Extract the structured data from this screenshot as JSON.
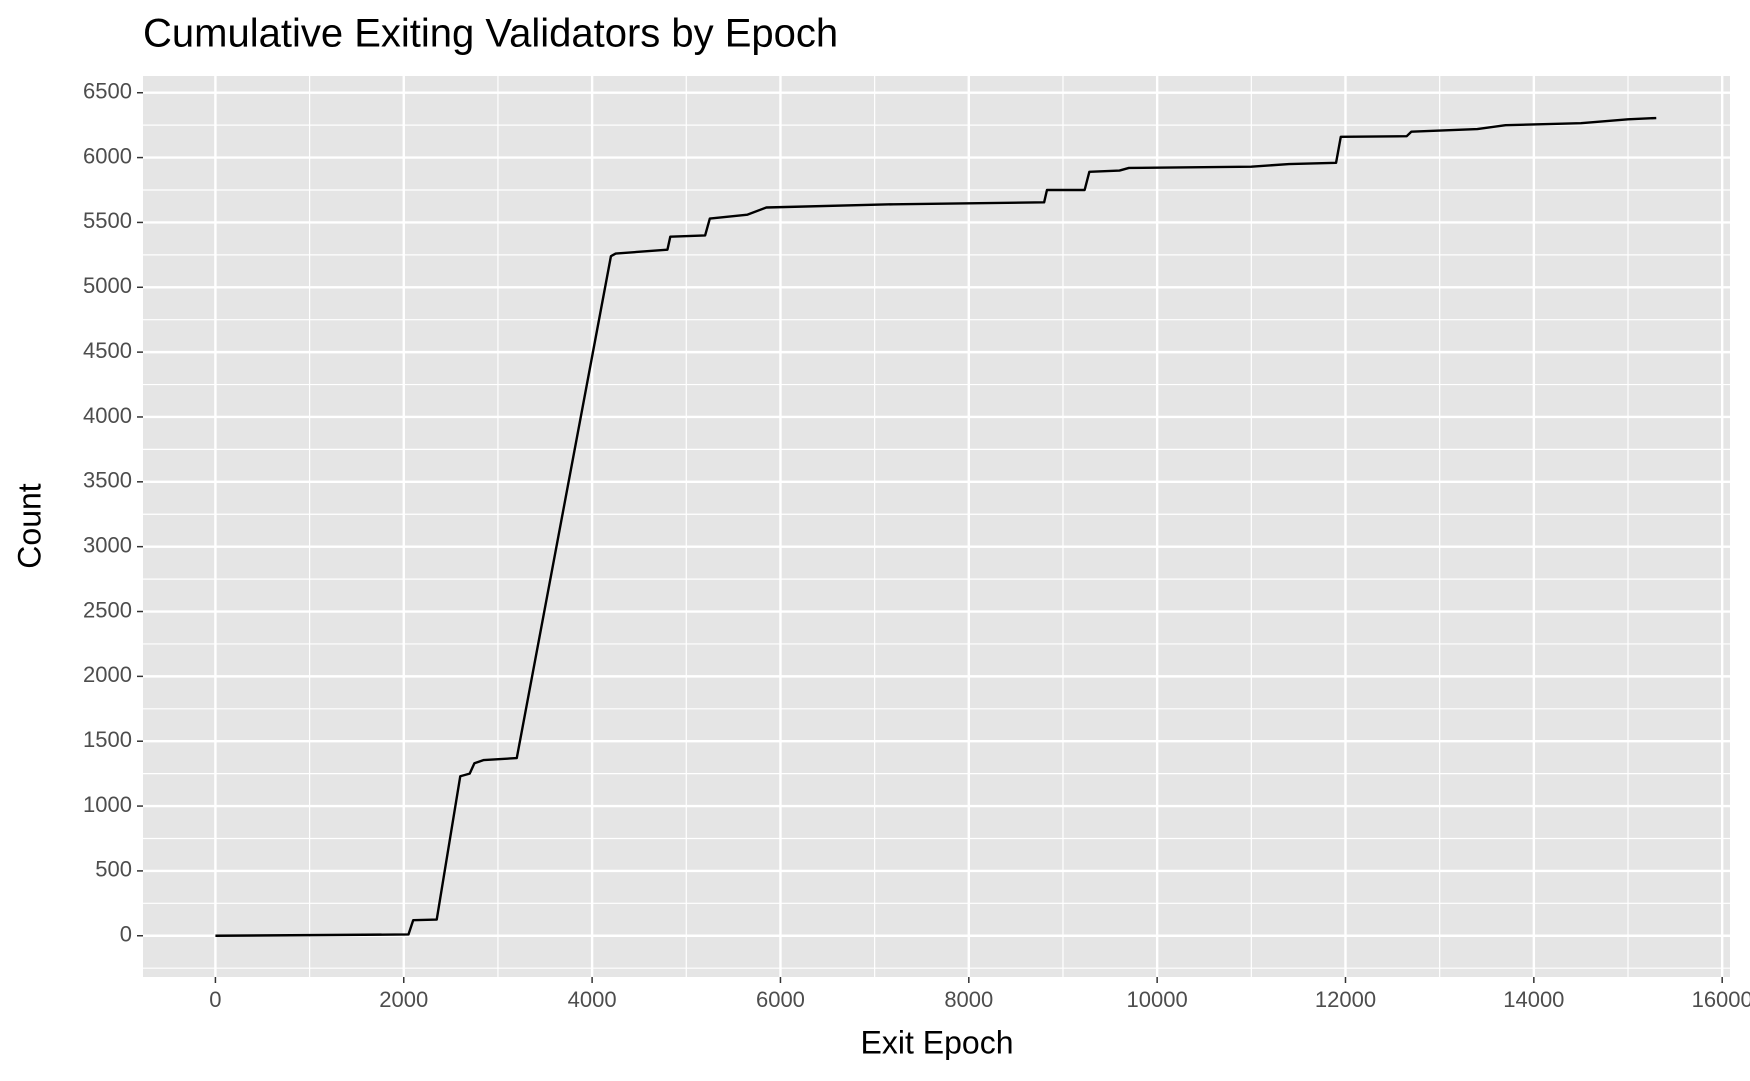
{
  "chart_data": {
    "type": "line",
    "title": "Cumulative Exiting Validators by Epoch",
    "x_label": "Exit Epoch",
    "y_label": "Count",
    "x": [
      0,
      2050,
      2100,
      2350,
      2600,
      2700,
      2750,
      2850,
      3200,
      4200,
      4250,
      4800,
      4830,
      5200,
      5250,
      5650,
      5850,
      7200,
      8800,
      8830,
      9230,
      9280,
      9600,
      9700,
      11000,
      11400,
      11900,
      11950,
      12650,
      12700,
      13400,
      13700,
      14500,
      15000,
      15300
    ],
    "series": [
      {
        "name": "Count",
        "color": "#000000",
        "values": [
          0,
          10,
          120,
          125,
          1230,
          1250,
          1330,
          1355,
          1370,
          5240,
          5260,
          5290,
          5390,
          5400,
          5530,
          5560,
          5615,
          5640,
          5655,
          5750,
          5750,
          5890,
          5900,
          5920,
          5930,
          5950,
          5960,
          6160,
          6165,
          6200,
          6220,
          6250,
          6265,
          6295,
          6305
        ]
      }
    ],
    "xlim": [
      -769,
      16083
    ],
    "ylim": [
      -318,
      6629
    ],
    "xticks": [
      0,
      2000,
      4000,
      6000,
      8000,
      10000,
      12000,
      14000,
      16000
    ],
    "yticks": [
      0,
      500,
      1000,
      1500,
      2000,
      2500,
      3000,
      3500,
      4000,
      4500,
      5000,
      5500,
      6000,
      6500
    ],
    "grid": true,
    "minor_grid": true,
    "panel_color": "#e5e5e5",
    "grid_color": "#ffffff"
  }
}
